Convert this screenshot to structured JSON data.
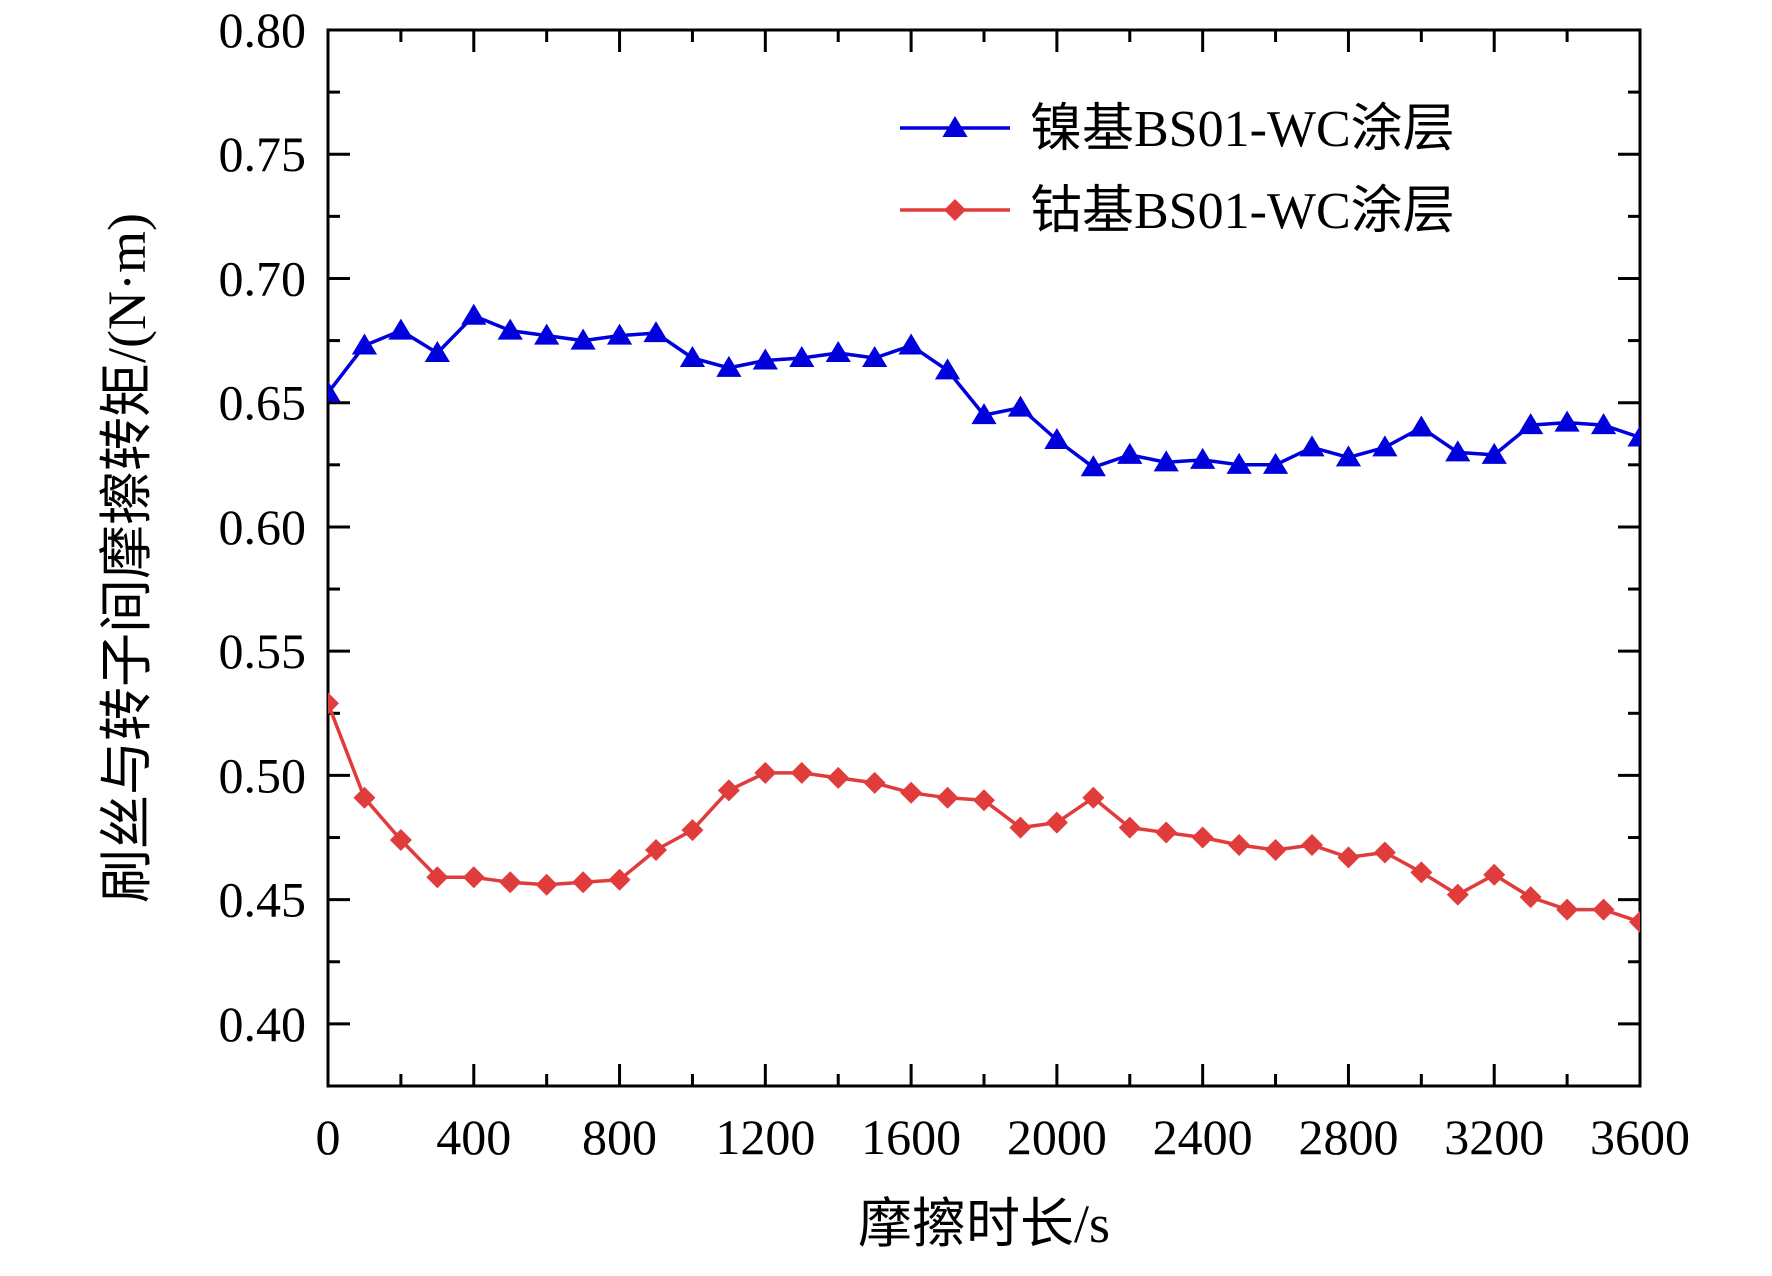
{
  "chart_data": {
    "type": "line",
    "xlabel": "摩擦时长/s",
    "ylabel": "刷丝与转子间摩擦转矩/(N·m)",
    "xlim": [
      0,
      3600
    ],
    "ylim": [
      0.375,
      0.8
    ],
    "xticks": [
      0,
      400,
      800,
      1200,
      1600,
      2000,
      2400,
      2800,
      3200,
      3600
    ],
    "xtick_labels": [
      "0",
      "400",
      "800",
      "1200",
      "1600",
      "2000",
      "2400",
      "2800",
      "3200",
      "3600"
    ],
    "yticks": [
      0.4,
      0.45,
      0.5,
      0.55,
      0.6,
      0.65,
      0.7,
      0.75,
      0.8
    ],
    "ytick_labels": [
      "0.40",
      "0.45",
      "0.50",
      "0.55",
      "0.60",
      "0.65",
      "0.70",
      "0.75",
      "0.80"
    ],
    "grid": false,
    "legend_position": "top-right",
    "x": [
      0,
      100,
      200,
      300,
      400,
      500,
      600,
      700,
      800,
      900,
      1000,
      1100,
      1200,
      1300,
      1400,
      1500,
      1600,
      1700,
      1800,
      1900,
      2000,
      2100,
      2200,
      2300,
      2400,
      2500,
      2600,
      2700,
      2800,
      2900,
      3000,
      3100,
      3200,
      3300,
      3400,
      3500,
      3600
    ],
    "series": [
      {
        "name": "镍基BS01-WC涂层",
        "color": "#0000dd",
        "marker": "triangle",
        "values": [
          0.654,
          0.673,
          0.679,
          0.67,
          0.685,
          0.679,
          0.677,
          0.675,
          0.677,
          0.678,
          0.668,
          0.664,
          0.667,
          0.668,
          0.67,
          0.668,
          0.673,
          0.663,
          0.645,
          0.648,
          0.635,
          0.624,
          0.629,
          0.626,
          0.627,
          0.625,
          0.625,
          0.632,
          0.628,
          0.632,
          0.64,
          0.63,
          0.629,
          0.641,
          0.642,
          0.641,
          0.636
        ]
      },
      {
        "name": "钴基BS01-WC涂层",
        "color": "#e03c3c",
        "marker": "diamond",
        "values": [
          0.529,
          0.491,
          0.474,
          0.459,
          0.459,
          0.457,
          0.456,
          0.457,
          0.458,
          0.47,
          0.478,
          0.494,
          0.501,
          0.501,
          0.499,
          0.497,
          0.493,
          0.491,
          0.49,
          0.479,
          0.481,
          0.491,
          0.479,
          0.477,
          0.475,
          0.472,
          0.47,
          0.472,
          0.467,
          0.469,
          0.461,
          0.452,
          0.46,
          0.451,
          0.446,
          0.446,
          0.441
        ]
      }
    ]
  }
}
